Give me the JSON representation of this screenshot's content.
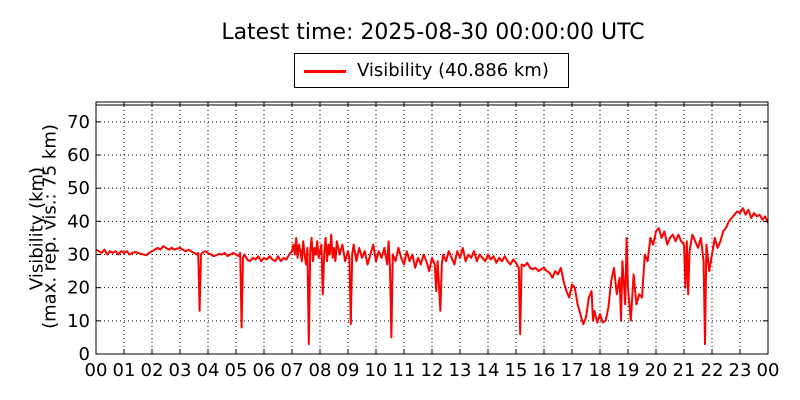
{
  "chart_data": {
    "type": "line",
    "title": "Latest time: 2025-08-30 00:00:00 UTC",
    "ylabel_line1": "Visibility (km)",
    "ylabel_line2": "(max. rep. vis.: 75 km)",
    "xlabel": "",
    "xlim": [
      0,
      24
    ],
    "ylim": [
      0,
      76
    ],
    "grid": true,
    "legend_position": "top-center",
    "x_ticks": [
      "00",
      "01",
      "02",
      "03",
      "04",
      "05",
      "06",
      "07",
      "08",
      "09",
      "10",
      "11",
      "12",
      "13",
      "14",
      "15",
      "16",
      "17",
      "18",
      "19",
      "20",
      "21",
      "22",
      "23",
      "00"
    ],
    "y_ticks": [
      0,
      10,
      20,
      30,
      40,
      50,
      60,
      70
    ],
    "series": [
      {
        "name": "Visibility (40.886 km)",
        "color": "#ff0000",
        "points": [
          [
            0.0,
            31.5
          ],
          [
            0.1,
            31.0
          ],
          [
            0.2,
            30.5
          ],
          [
            0.3,
            31.5
          ],
          [
            0.4,
            30.0
          ],
          [
            0.5,
            31.0
          ],
          [
            0.6,
            30.5
          ],
          [
            0.7,
            31.0
          ],
          [
            0.8,
            30.0
          ],
          [
            0.9,
            31.0
          ],
          [
            1.0,
            30.5
          ],
          [
            1.1,
            31.0
          ],
          [
            1.2,
            30.0
          ],
          [
            1.3,
            30.5
          ],
          [
            1.4,
            30.8
          ],
          [
            1.5,
            30.5
          ],
          [
            1.6,
            30.2
          ],
          [
            1.7,
            30.0
          ],
          [
            1.8,
            29.8
          ],
          [
            1.9,
            30.5
          ],
          [
            2.0,
            31.0
          ],
          [
            2.1,
            31.5
          ],
          [
            2.2,
            32.0
          ],
          [
            2.3,
            31.5
          ],
          [
            2.4,
            32.5
          ],
          [
            2.5,
            32.0
          ],
          [
            2.6,
            31.5
          ],
          [
            2.7,
            32.0
          ],
          [
            2.8,
            31.5
          ],
          [
            2.9,
            31.8
          ],
          [
            3.0,
            32.0
          ],
          [
            3.1,
            31.5
          ],
          [
            3.2,
            31.0
          ],
          [
            3.3,
            31.5
          ],
          [
            3.4,
            31.0
          ],
          [
            3.5,
            30.5
          ],
          [
            3.6,
            30.0
          ],
          [
            3.65,
            30.5
          ],
          [
            3.7,
            13.0
          ],
          [
            3.75,
            30.0
          ],
          [
            3.8,
            30.5
          ],
          [
            3.9,
            31.0
          ],
          [
            4.0,
            30.5
          ],
          [
            4.1,
            30.0
          ],
          [
            4.2,
            29.5
          ],
          [
            4.3,
            29.8
          ],
          [
            4.4,
            30.2
          ],
          [
            4.5,
            30.0
          ],
          [
            4.6,
            30.5
          ],
          [
            4.7,
            29.5
          ],
          [
            4.8,
            30.0
          ],
          [
            4.9,
            30.5
          ],
          [
            5.0,
            30.0
          ],
          [
            5.1,
            29.5
          ],
          [
            5.15,
            30.5
          ],
          [
            5.2,
            8.0
          ],
          [
            5.25,
            29.0
          ],
          [
            5.3,
            30.0
          ],
          [
            5.4,
            28.5
          ],
          [
            5.5,
            28.0
          ],
          [
            5.6,
            29.0
          ],
          [
            5.7,
            28.5
          ],
          [
            5.8,
            29.5
          ],
          [
            5.9,
            28.0
          ],
          [
            6.0,
            29.0
          ],
          [
            6.1,
            28.5
          ],
          [
            6.2,
            29.5
          ],
          [
            6.3,
            28.5
          ],
          [
            6.4,
            28.0
          ],
          [
            6.5,
            29.5
          ],
          [
            6.6,
            28.0
          ],
          [
            6.7,
            29.0
          ],
          [
            6.8,
            28.5
          ],
          [
            6.9,
            30.0
          ],
          [
            7.0,
            31.0
          ],
          [
            7.05,
            33.0
          ],
          [
            7.1,
            30.0
          ],
          [
            7.15,
            35.0
          ],
          [
            7.2,
            29.0
          ],
          [
            7.25,
            33.0
          ],
          [
            7.3,
            31.0
          ],
          [
            7.35,
            28.0
          ],
          [
            7.4,
            34.0
          ],
          [
            7.45,
            30.0
          ],
          [
            7.5,
            27.0
          ],
          [
            7.55,
            32.0
          ],
          [
            7.6,
            3.0
          ],
          [
            7.65,
            31.0
          ],
          [
            7.7,
            35.0
          ],
          [
            7.75,
            28.0
          ],
          [
            7.8,
            32.0
          ],
          [
            7.85,
            30.0
          ],
          [
            7.9,
            34.0
          ],
          [
            7.95,
            29.0
          ],
          [
            8.0,
            31.0
          ],
          [
            8.05,
            33.0
          ],
          [
            8.1,
            18.0
          ],
          [
            8.15,
            30.0
          ],
          [
            8.2,
            35.0
          ],
          [
            8.25,
            28.0
          ],
          [
            8.3,
            33.0
          ],
          [
            8.35,
            30.0
          ],
          [
            8.4,
            36.0
          ],
          [
            8.45,
            29.0
          ],
          [
            8.5,
            32.0
          ],
          [
            8.55,
            28.0
          ],
          [
            8.6,
            34.0
          ],
          [
            8.7,
            30.0
          ],
          [
            8.8,
            33.0
          ],
          [
            8.9,
            28.0
          ],
          [
            9.0,
            31.0
          ],
          [
            9.05,
            29.0
          ],
          [
            9.1,
            9.0
          ],
          [
            9.15,
            30.0
          ],
          [
            9.2,
            33.0
          ],
          [
            9.3,
            28.0
          ],
          [
            9.4,
            32.0
          ],
          [
            9.5,
            29.0
          ],
          [
            9.6,
            31.0
          ],
          [
            9.7,
            27.0
          ],
          [
            9.8,
            30.0
          ],
          [
            9.9,
            33.0
          ],
          [
            10.0,
            28.0
          ],
          [
            10.1,
            31.0
          ],
          [
            10.2,
            29.0
          ],
          [
            10.3,
            32.0
          ],
          [
            10.4,
            27.0
          ],
          [
            10.45,
            34.0
          ],
          [
            10.5,
            26.0
          ],
          [
            10.55,
            5.0
          ],
          [
            10.6,
            30.0
          ],
          [
            10.7,
            28.0
          ],
          [
            10.8,
            32.0
          ],
          [
            10.9,
            29.0
          ],
          [
            11.0,
            27.0
          ],
          [
            11.1,
            31.0
          ],
          [
            11.2,
            28.0
          ],
          [
            11.3,
            30.0
          ],
          [
            11.4,
            26.0
          ],
          [
            11.5,
            29.0
          ],
          [
            11.6,
            27.0
          ],
          [
            11.7,
            30.0
          ],
          [
            11.8,
            28.0
          ],
          [
            11.9,
            25.0
          ],
          [
            12.0,
            29.0
          ],
          [
            12.1,
            27.0
          ],
          [
            12.15,
            19.0
          ],
          [
            12.2,
            28.0
          ],
          [
            12.3,
            13.0
          ],
          [
            12.35,
            27.0
          ],
          [
            12.4,
            30.0
          ],
          [
            12.5,
            28.0
          ],
          [
            12.6,
            31.0
          ],
          [
            12.7,
            29.0
          ],
          [
            12.8,
            27.0
          ],
          [
            12.9,
            31.0
          ],
          [
            13.0,
            29.0
          ],
          [
            13.1,
            32.0
          ],
          [
            13.2,
            28.0
          ],
          [
            13.3,
            30.0
          ],
          [
            13.4,
            29.0
          ],
          [
            13.5,
            31.0
          ],
          [
            13.6,
            28.0
          ],
          [
            13.7,
            30.0
          ],
          [
            13.8,
            29.0
          ],
          [
            13.9,
            28.0
          ],
          [
            14.0,
            30.0
          ],
          [
            14.1,
            28.5
          ],
          [
            14.2,
            29.5
          ],
          [
            14.3,
            27.5
          ],
          [
            14.4,
            29.0
          ],
          [
            14.5,
            28.0
          ],
          [
            14.6,
            29.5
          ],
          [
            14.7,
            28.0
          ],
          [
            14.8,
            27.0
          ],
          [
            14.9,
            28.5
          ],
          [
            15.0,
            27.5
          ],
          [
            15.1,
            26.0
          ],
          [
            15.15,
            6.0
          ],
          [
            15.2,
            27.0
          ],
          [
            15.3,
            26.5
          ],
          [
            15.4,
            27.5
          ],
          [
            15.5,
            26.0
          ],
          [
            15.6,
            25.5
          ],
          [
            15.7,
            26.0
          ],
          [
            15.8,
            25.0
          ],
          [
            15.9,
            25.5
          ],
          [
            16.0,
            26.0
          ],
          [
            16.1,
            25.0
          ],
          [
            16.2,
            24.5
          ],
          [
            16.3,
            23.0
          ],
          [
            16.4,
            25.0
          ],
          [
            16.5,
            24.0
          ],
          [
            16.6,
            26.0
          ],
          [
            16.7,
            22.0
          ],
          [
            16.8,
            19.0
          ],
          [
            16.9,
            17.0
          ],
          [
            17.0,
            21.0
          ],
          [
            17.1,
            20.0
          ],
          [
            17.2,
            15.0
          ],
          [
            17.3,
            12.0
          ],
          [
            17.4,
            9.0
          ],
          [
            17.5,
            11.0
          ],
          [
            17.6,
            17.0
          ],
          [
            17.7,
            19.0
          ],
          [
            17.75,
            10.0
          ],
          [
            17.8,
            13.0
          ],
          [
            17.9,
            9.5
          ],
          [
            18.0,
            12.0
          ],
          [
            18.1,
            9.5
          ],
          [
            18.2,
            10.0
          ],
          [
            18.3,
            14.0
          ],
          [
            18.4,
            22.0
          ],
          [
            18.5,
            26.0
          ],
          [
            18.6,
            18.0
          ],
          [
            18.7,
            23.0
          ],
          [
            18.75,
            10.0
          ],
          [
            18.8,
            28.0
          ],
          [
            18.9,
            15.0
          ],
          [
            18.95,
            35.0
          ],
          [
            19.0,
            20.0
          ],
          [
            19.1,
            10.0
          ],
          [
            19.2,
            24.0
          ],
          [
            19.3,
            15.0
          ],
          [
            19.4,
            18.0
          ],
          [
            19.5,
            17.0
          ],
          [
            19.6,
            30.0
          ],
          [
            19.7,
            28.0
          ],
          [
            19.8,
            35.0
          ],
          [
            19.9,
            33.0
          ],
          [
            20.0,
            37.0
          ],
          [
            20.1,
            38.0
          ],
          [
            20.2,
            35.0
          ],
          [
            20.3,
            37.0
          ],
          [
            20.4,
            33.0
          ],
          [
            20.5,
            35.0
          ],
          [
            20.6,
            36.0
          ],
          [
            20.7,
            34.0
          ],
          [
            20.8,
            36.0
          ],
          [
            20.9,
            34.0
          ],
          [
            21.0,
            33.0
          ],
          [
            21.05,
            20.0
          ],
          [
            21.1,
            34.0
          ],
          [
            21.15,
            18.0
          ],
          [
            21.2,
            31.0
          ],
          [
            21.3,
            36.0
          ],
          [
            21.4,
            34.0
          ],
          [
            21.5,
            32.0
          ],
          [
            21.6,
            35.0
          ],
          [
            21.7,
            28.0
          ],
          [
            21.75,
            3.0
          ],
          [
            21.8,
            33.0
          ],
          [
            21.9,
            25.0
          ],
          [
            22.0,
            30.0
          ],
          [
            22.1,
            35.0
          ],
          [
            22.2,
            32.0
          ],
          [
            22.3,
            34.0
          ],
          [
            22.4,
            37.0
          ],
          [
            22.5,
            38.0
          ],
          [
            22.6,
            40.0
          ],
          [
            22.7,
            41.0
          ],
          [
            22.8,
            42.0
          ],
          [
            22.9,
            43.0
          ],
          [
            23.0,
            42.5
          ],
          [
            23.1,
            44.0
          ],
          [
            23.2,
            42.0
          ],
          [
            23.3,
            43.5
          ],
          [
            23.4,
            41.0
          ],
          [
            23.5,
            42.5
          ],
          [
            23.6,
            41.5
          ],
          [
            23.7,
            42.0
          ],
          [
            23.8,
            40.5
          ],
          [
            23.9,
            41.5
          ],
          [
            24.0,
            39.5
          ]
        ]
      }
    ]
  }
}
